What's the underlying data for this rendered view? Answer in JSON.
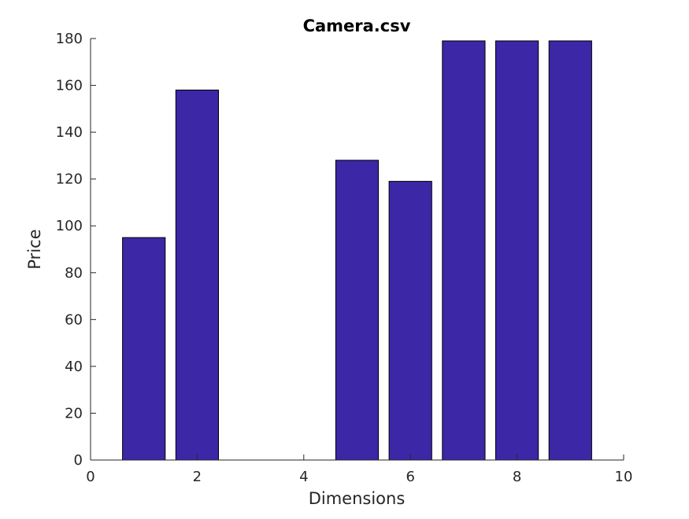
{
  "chart_data": {
    "type": "bar",
    "title": "Camera.csv",
    "xlabel": "Dimensions",
    "ylabel": "Price",
    "x": [
      1,
      2,
      3,
      4,
      5,
      6,
      7,
      8,
      9
    ],
    "values": [
      95,
      158,
      0,
      0,
      128,
      119,
      179,
      179,
      179
    ],
    "xlim": [
      0,
      10
    ],
    "ylim": [
      0,
      180
    ],
    "xticks": [
      0,
      2,
      4,
      6,
      8,
      10
    ],
    "yticks": [
      0,
      20,
      40,
      60,
      80,
      100,
      120,
      140,
      160,
      180
    ],
    "bar_color": "#3c27a6",
    "grid": false,
    "legend": "none"
  }
}
